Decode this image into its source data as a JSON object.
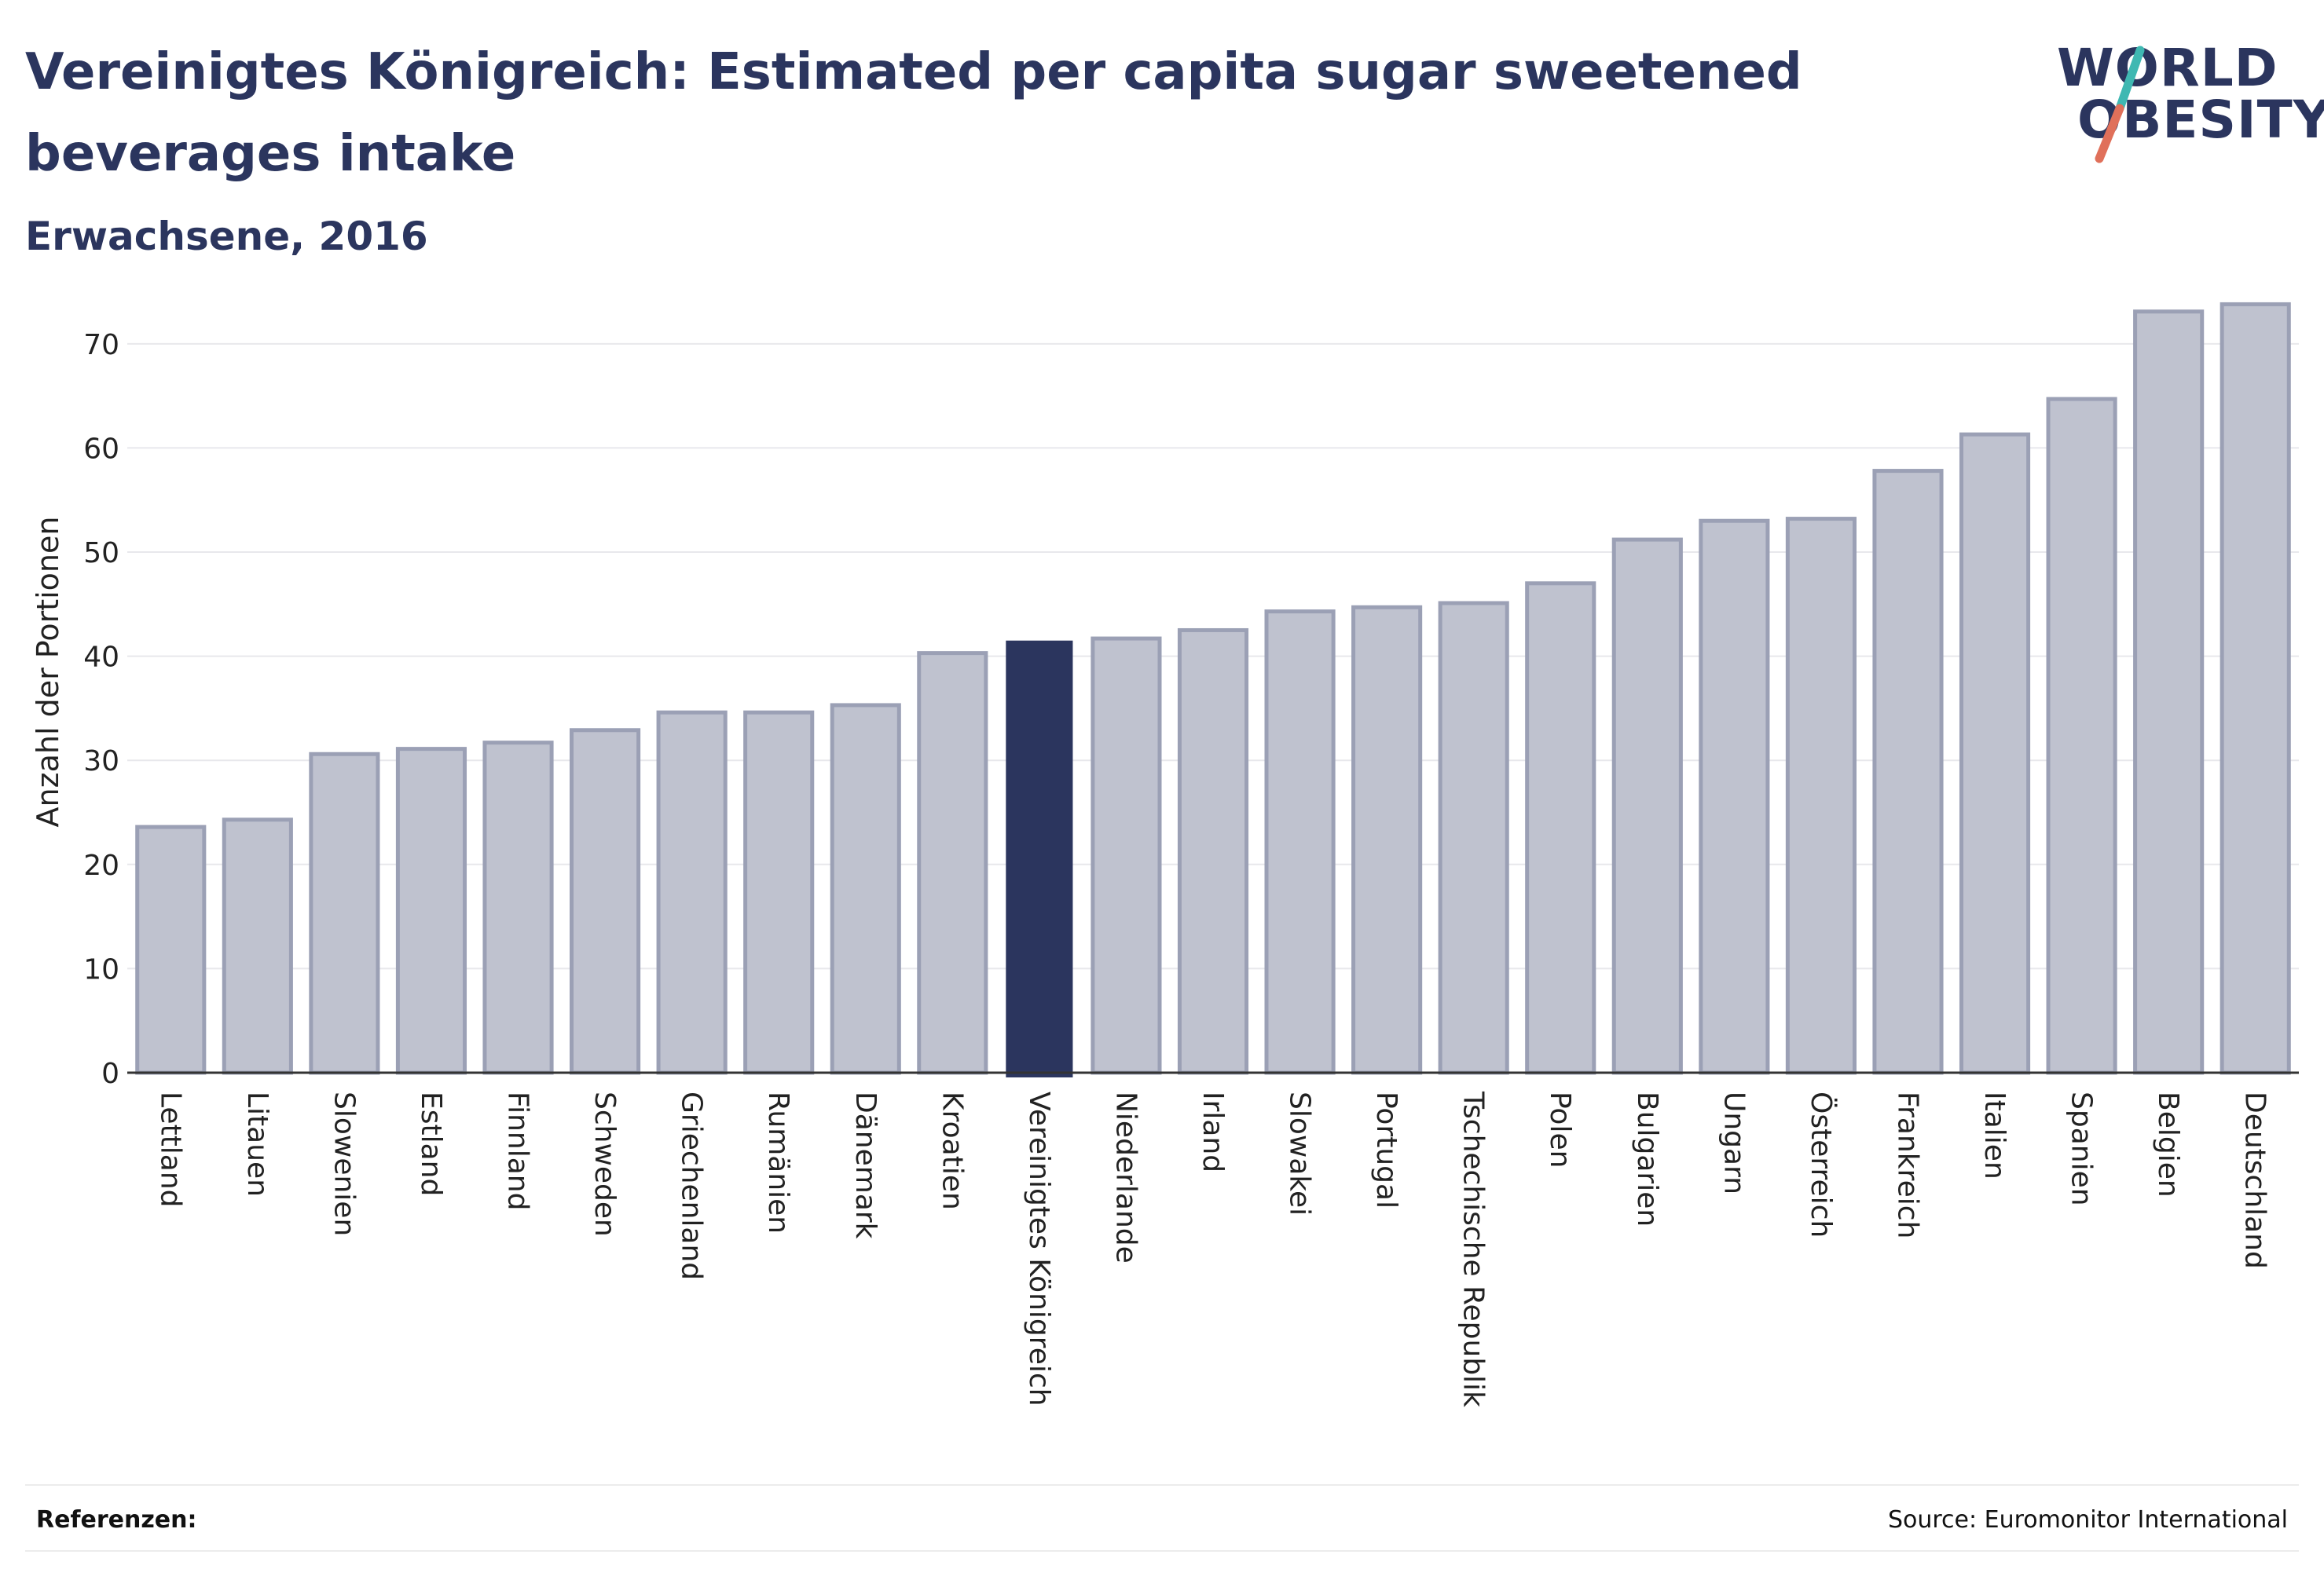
{
  "header": {
    "title": "Vereinigtes Königreich: Estimated per capita sugar sweetened beverages intake",
    "subtitle": "Erwachsene, 2016"
  },
  "logo": {
    "line1": "WORLD",
    "line2": "OBESITY",
    "text_color": "#2b355e",
    "accent_colors": [
      "#3fb8b2",
      "#e0705a"
    ]
  },
  "footer": {
    "references_label": "Referenzen:",
    "source": "Source: Euromonitor International"
  },
  "chart_data": {
    "type": "bar",
    "ylabel": "Anzahl der Portionen",
    "xlabel": "",
    "ylim": [
      0,
      77
    ],
    "yticks": [
      0,
      10,
      20,
      30,
      40,
      50,
      60,
      70
    ],
    "grid": true,
    "highlight": "Vereinigtes Königreich",
    "colors": {
      "default": "#bfc2cf",
      "default_border": "#9ba0b5",
      "highlight": "#2b355e"
    },
    "categories": [
      "Lettland",
      "Litauen",
      "Slowenien",
      "Estland",
      "Finnland",
      "Schweden",
      "Griechenland",
      "Rumänien",
      "Dänemark",
      "Kroatien",
      "Vereinigtes Königreich",
      "Niederlande",
      "Irland",
      "Slowakei",
      "Portugal",
      "Tschechische Republik",
      "Polen",
      "Bulgarien",
      "Ungarn",
      "Österreich",
      "Frankreich",
      "Italien",
      "Spanien",
      "Belgien",
      "Deutschland"
    ],
    "values": [
      23.6,
      24.3,
      30.6,
      31.1,
      31.7,
      32.9,
      34.6,
      34.6,
      35.3,
      40.3,
      41.5,
      41.7,
      42.5,
      44.3,
      44.7,
      45.1,
      47.0,
      51.2,
      53.0,
      53.2,
      57.8,
      61.3,
      64.7,
      73.1,
      73.8
    ]
  }
}
